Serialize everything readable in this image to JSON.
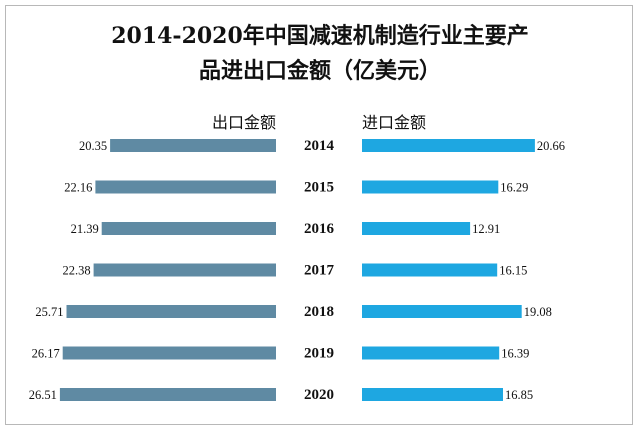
{
  "chart_data": {
    "type": "bar",
    "title_lines": [
      "2014-2020年中国减速机制造行业主要产",
      "品进出口金额（亿美元）"
    ],
    "categories": [
      "2014",
      "2015",
      "2016",
      "2017",
      "2018",
      "2019",
      "2020"
    ],
    "series": [
      {
        "name": "出口金额",
        "values": [
          20.35,
          22.16,
          21.39,
          22.38,
          25.71,
          26.17,
          26.51
        ],
        "color": "#5f8aa3",
        "direction": "left"
      },
      {
        "name": "进口金额",
        "values": [
          20.66,
          16.29,
          12.91,
          16.15,
          19.08,
          16.39,
          16.85
        ],
        "color": "#1ea7e1",
        "direction": "right"
      }
    ],
    "value_labels": {
      "export": [
        "20.35",
        "22.16",
        "21.39",
        "22.38",
        "25.71",
        "26.17",
        "26.51"
      ],
      "import": [
        "20.66",
        "16.29",
        "12.91",
        "16.15",
        "19.08",
        "16.39",
        "16.85"
      ]
    },
    "grid": false,
    "legend_position": "top"
  }
}
